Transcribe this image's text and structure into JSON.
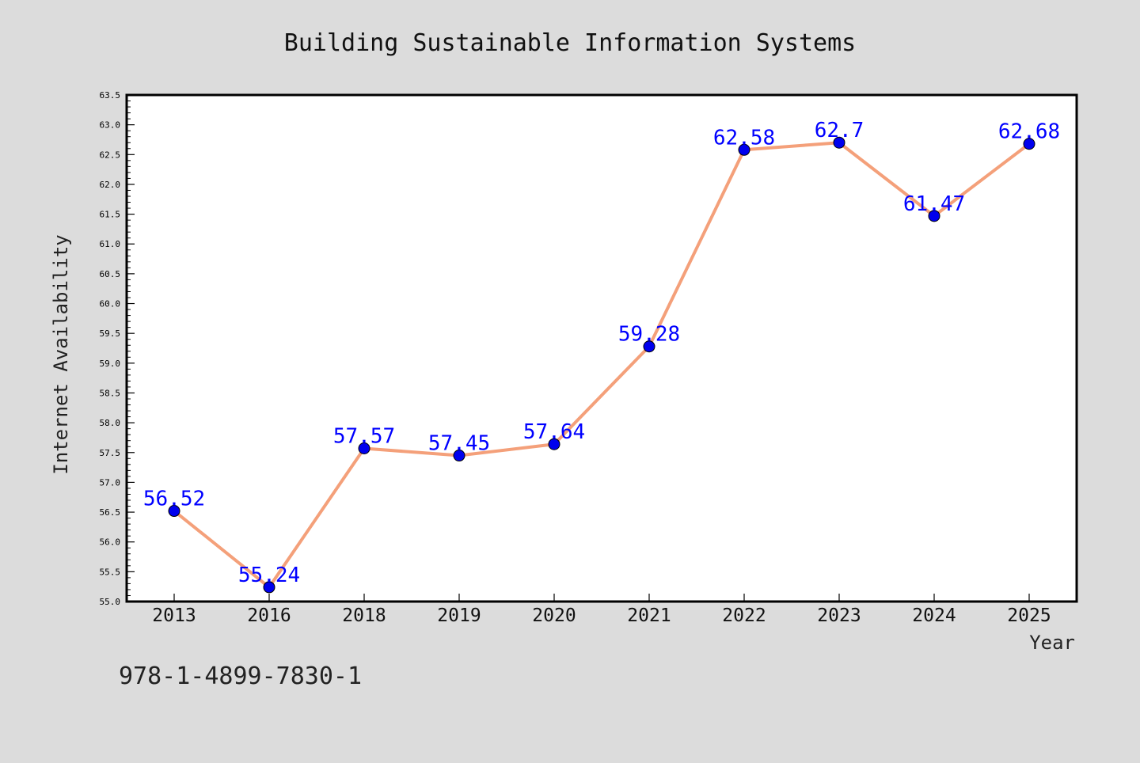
{
  "chart_data": {
    "type": "line",
    "title": "Building Sustainable Information Systems",
    "xlabel": "Year",
    "ylabel": "Internet Availability",
    "categories": [
      "2013",
      "2016",
      "2018",
      "2019",
      "2020",
      "2021",
      "2022",
      "2023",
      "2024",
      "2025"
    ],
    "series": [
      {
        "values": [
          56.52,
          55.24,
          57.57,
          57.45,
          57.64,
          59.28,
          62.58,
          62.7,
          61.47,
          62.68
        ],
        "labels": [
          "56.52",
          "55.24",
          "57.57",
          "57.45",
          "57.64",
          "59.28",
          "62.58",
          "62.7",
          "61.47",
          "62.68"
        ],
        "line_color": "#f4a07a",
        "marker_color": "#0000ee",
        "label_color": "#0000ff"
      }
    ],
    "ylim": [
      55.0,
      63.5
    ],
    "yticks": [
      "55.0",
      "55.5",
      "56.0",
      "56.5",
      "57.0",
      "57.5",
      "58.0",
      "58.5",
      "59.0",
      "59.5",
      "60.0",
      "60.5",
      "61.0",
      "61.5",
      "62.0",
      "62.5",
      "63.0",
      "63.5"
    ],
    "grid": false,
    "legend": "none"
  },
  "footer": {
    "isbn": "978-1-4899-7830-1"
  },
  "colors": {
    "background": "#dcdcdc",
    "plot_background": "#ffffff",
    "axis": "#000000"
  }
}
